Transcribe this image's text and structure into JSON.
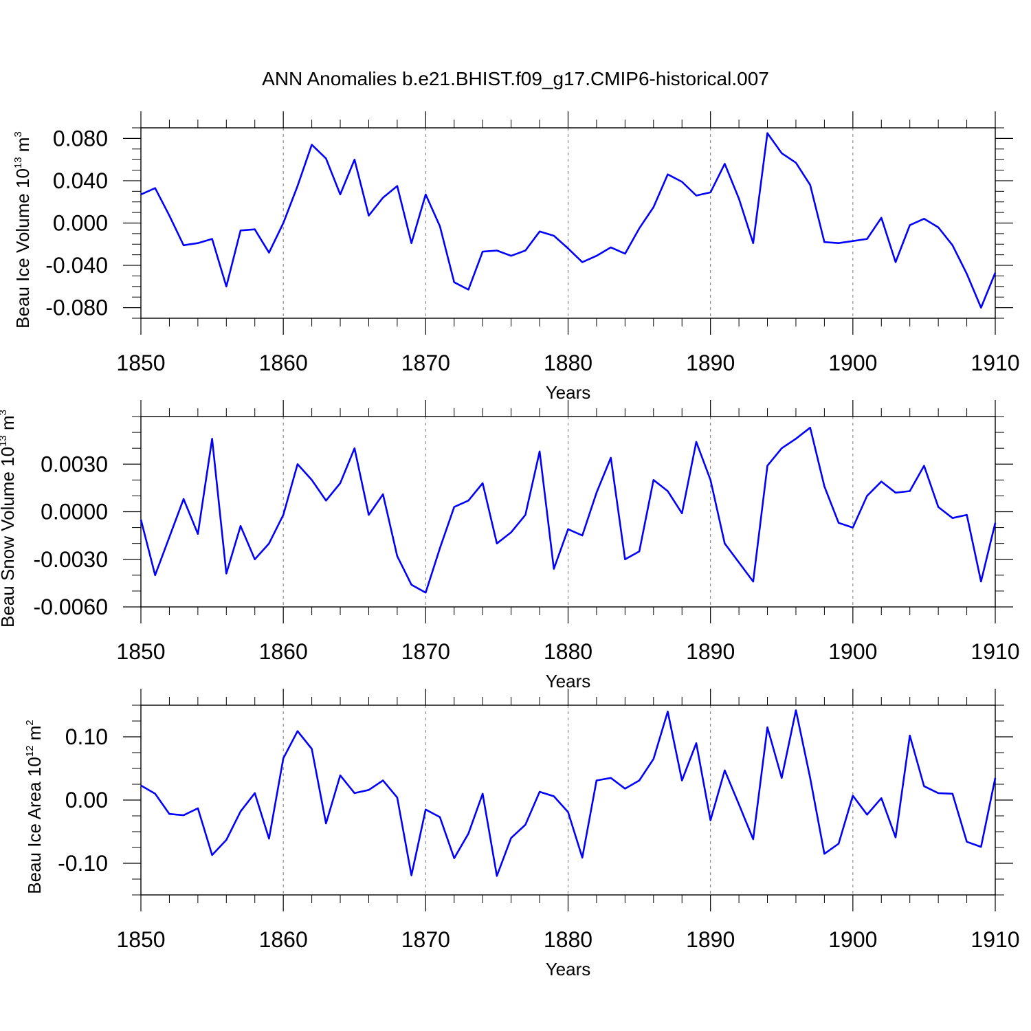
{
  "title": "ANN Anomalies b.e21.BHIST.f09_g17.CMIP6-historical.007",
  "line_color": "#0000ff",
  "chart_data": [
    {
      "type": "line",
      "title": "ANN Anomalies b.e21.BHIST.f09_g17.CMIP6-historical.007",
      "xlabel": "Years",
      "ylabel": {
        "main": "Beau Ice Volume 10",
        "sup": "13",
        "unit": " m",
        "unit_sup": "3"
      },
      "xlim": [
        1850,
        1910
      ],
      "ylim": [
        -0.09,
        0.09
      ],
      "xticks": [
        1850,
        1860,
        1870,
        1880,
        1890,
        1900,
        1910
      ],
      "xtick_labels": [
        "1850",
        "1860",
        "1870",
        "1880",
        "1890",
        "1900",
        "1910"
      ],
      "yticks": [
        0.08,
        0.04,
        0.0,
        -0.04,
        -0.08
      ],
      "ytick_labels": [
        "0.080",
        "0.040",
        "0.000",
        "-0.040",
        "-0.080"
      ],
      "yminor": [
        0.09,
        0.07,
        0.06,
        0.05,
        0.03,
        0.02,
        0.01,
        -0.01,
        -0.02,
        -0.03,
        -0.05,
        -0.06,
        -0.07,
        -0.09
      ],
      "grid_x": [
        1860,
        1870,
        1880,
        1890,
        1900
      ],
      "x": [
        1850,
        1851,
        1852,
        1853,
        1854,
        1855,
        1856,
        1857,
        1858,
        1859,
        1860,
        1861,
        1862,
        1863,
        1864,
        1865,
        1866,
        1867,
        1868,
        1869,
        1870,
        1871,
        1872,
        1873,
        1874,
        1875,
        1876,
        1877,
        1878,
        1879,
        1880,
        1881,
        1882,
        1883,
        1884,
        1885,
        1886,
        1887,
        1888,
        1889,
        1890,
        1891,
        1892,
        1893,
        1894,
        1895,
        1896,
        1897,
        1898,
        1899,
        1900,
        1901,
        1902,
        1903,
        1904,
        1905,
        1906,
        1907,
        1908,
        1909,
        1910
      ],
      "series": [
        {
          "name": "Beau Ice Volume",
          "values": [
            0.027,
            0.033,
            0.007,
            -0.021,
            -0.019,
            -0.015,
            -0.06,
            -0.007,
            -0.006,
            -0.028,
            0.0,
            0.035,
            0.074,
            0.061,
            0.027,
            0.06,
            0.007,
            0.024,
            0.035,
            -0.019,
            0.027,
            -0.003,
            -0.056,
            -0.063,
            -0.027,
            -0.026,
            -0.031,
            -0.026,
            -0.008,
            -0.012,
            -0.024,
            -0.037,
            -0.031,
            -0.023,
            -0.029,
            -0.005,
            0.015,
            0.046,
            0.039,
            0.026,
            0.029,
            0.056,
            0.023,
            -0.019,
            0.085,
            0.066,
            0.057,
            0.036,
            -0.018,
            -0.019,
            -0.017,
            -0.015,
            0.005,
            -0.037,
            -0.002,
            0.004,
            -0.004,
            -0.021,
            -0.048,
            -0.08,
            -0.047
          ]
        }
      ]
    },
    {
      "type": "line",
      "xlabel": "Years",
      "ylabel": {
        "main": "Beau Snow Volume 10",
        "sup": "13",
        "unit": " m",
        "unit_sup": "3"
      },
      "xlim": [
        1850,
        1910
      ],
      "ylim": [
        -0.006,
        0.006
      ],
      "xticks": [
        1850,
        1860,
        1870,
        1880,
        1890,
        1900,
        1910
      ],
      "xtick_labels": [
        "1850",
        "1860",
        "1870",
        "1880",
        "1890",
        "1900",
        "1910"
      ],
      "yticks": [
        0.003,
        0.0,
        -0.003,
        -0.006
      ],
      "ytick_labels": [
        "0.0030",
        "0.0000",
        "-0.0030",
        "-0.0060"
      ],
      "yminor": [
        0.006,
        0.005,
        0.004,
        0.002,
        0.001,
        -0.001,
        -0.002,
        -0.004,
        -0.005
      ],
      "grid_x": [
        1860,
        1870,
        1880,
        1890,
        1900
      ],
      "x": [
        1850,
        1851,
        1852,
        1853,
        1854,
        1855,
        1856,
        1857,
        1858,
        1859,
        1860,
        1861,
        1862,
        1863,
        1864,
        1865,
        1866,
        1867,
        1868,
        1869,
        1870,
        1871,
        1872,
        1873,
        1874,
        1875,
        1876,
        1877,
        1878,
        1879,
        1880,
        1881,
        1882,
        1883,
        1884,
        1885,
        1886,
        1887,
        1888,
        1889,
        1890,
        1891,
        1892,
        1893,
        1894,
        1895,
        1896,
        1897,
        1898,
        1899,
        1900,
        1901,
        1902,
        1903,
        1904,
        1905,
        1906,
        1907,
        1908,
        1909,
        1910
      ],
      "series": [
        {
          "name": "Beau Snow Volume",
          "values": [
            -0.0005,
            -0.004,
            -0.0016,
            0.0008,
            -0.0014,
            0.0046,
            -0.0039,
            -0.0009,
            -0.003,
            -0.002,
            -0.0002,
            0.003,
            0.002,
            0.0007,
            0.0018,
            0.004,
            -0.0002,
            0.0011,
            -0.0028,
            -0.0046,
            -0.0051,
            -0.0023,
            0.0003,
            0.0007,
            0.0018,
            -0.002,
            -0.0013,
            -0.0002,
            0.0038,
            -0.0036,
            -0.0011,
            -0.0015,
            0.0012,
            0.0034,
            -0.003,
            -0.0025,
            0.002,
            0.0013,
            -0.0001,
            0.0044,
            0.002,
            -0.002,
            -0.0032,
            -0.0044,
            0.0029,
            0.004,
            0.0046,
            0.0053,
            0.0016,
            -0.0007,
            -0.001,
            0.001,
            0.0019,
            0.0012,
            0.0013,
            0.0029,
            0.0003,
            -0.0004,
            -0.0002,
            -0.0044,
            -0.0007
          ]
        }
      ]
    },
    {
      "type": "line",
      "xlabel": "Years",
      "ylabel": {
        "main": "Beau Ice Area 10",
        "sup": "12",
        "unit": " m",
        "unit_sup": "2"
      },
      "xlim": [
        1850,
        1910
      ],
      "ylim": [
        -0.15,
        0.15
      ],
      "xticks": [
        1850,
        1860,
        1870,
        1880,
        1890,
        1900,
        1910
      ],
      "xtick_labels": [
        "1850",
        "1860",
        "1870",
        "1880",
        "1890",
        "1900",
        "1910"
      ],
      "yticks": [
        0.1,
        0.0,
        -0.1
      ],
      "ytick_labels": [
        "0.10",
        "0.00",
        "-0.10"
      ],
      "yminor": [
        0.15,
        0.125,
        0.075,
        0.05,
        0.025,
        -0.025,
        -0.05,
        -0.075,
        -0.125,
        -0.15
      ],
      "grid_x": [
        1860,
        1870,
        1880,
        1890,
        1900
      ],
      "x": [
        1850,
        1851,
        1852,
        1853,
        1854,
        1855,
        1856,
        1857,
        1858,
        1859,
        1860,
        1861,
        1862,
        1863,
        1864,
        1865,
        1866,
        1867,
        1868,
        1869,
        1870,
        1871,
        1872,
        1873,
        1874,
        1875,
        1876,
        1877,
        1878,
        1879,
        1880,
        1881,
        1882,
        1883,
        1884,
        1885,
        1886,
        1887,
        1888,
        1889,
        1890,
        1891,
        1892,
        1893,
        1894,
        1895,
        1896,
        1897,
        1898,
        1899,
        1900,
        1901,
        1902,
        1903,
        1904,
        1905,
        1906,
        1907,
        1908,
        1909,
        1910
      ],
      "series": [
        {
          "name": "Beau Ice Area",
          "values": [
            0.023,
            0.01,
            -0.022,
            -0.024,
            -0.013,
            -0.087,
            -0.063,
            -0.018,
            0.011,
            -0.061,
            0.066,
            0.109,
            0.081,
            -0.037,
            0.039,
            0.011,
            0.016,
            0.031,
            0.004,
            -0.119,
            -0.015,
            -0.027,
            -0.092,
            -0.053,
            0.01,
            -0.12,
            -0.06,
            -0.039,
            0.013,
            0.006,
            -0.019,
            -0.091,
            0.031,
            0.035,
            0.018,
            0.031,
            0.065,
            0.14,
            0.031,
            0.09,
            -0.032,
            0.047,
            -0.007,
            -0.062,
            0.115,
            0.035,
            0.142,
            0.035,
            -0.085,
            -0.069,
            0.007,
            -0.023,
            0.003,
            -0.059,
            0.102,
            0.022,
            0.011,
            0.01,
            -0.066,
            -0.074,
            0.035
          ]
        }
      ]
    }
  ]
}
